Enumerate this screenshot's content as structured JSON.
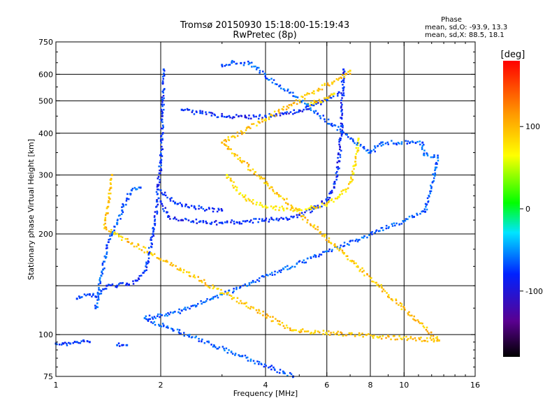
{
  "chart_data": {
    "type": "scatter",
    "title": "Tromsø 20150930 15:18:00-15:19:43",
    "subtitle": "RwPretec (8p)",
    "xlabel": "Frequency [MHz]",
    "ylabel": "Stationary phase Virtual Height [km]",
    "x_scale": "log",
    "y_scale": "log",
    "xlim": [
      1,
      16
    ],
    "ylim": [
      75,
      750
    ],
    "x_ticks": [
      1,
      2,
      4,
      6,
      8,
      10,
      16
    ],
    "x_tick_labels": [
      "1",
      "2",
      "4",
      "6",
      "8",
      "10",
      "16"
    ],
    "y_ticks": [
      75,
      100,
      200,
      300,
      400,
      500,
      600,
      750
    ],
    "y_tick_labels": [
      "75",
      "100",
      "200",
      "300",
      "400",
      "500",
      "600",
      "750"
    ],
    "y_grid": [
      100,
      140,
      200,
      300,
      400,
      500,
      600
    ],
    "x_grid": [
      2,
      4,
      6,
      8,
      10
    ],
    "grid": true,
    "phase_info": {
      "title": "Phase",
      "line_o": "mean, sd,O: -93.9, 13.3",
      "line_x": "mean, sd,X:  88.5, 18.1"
    },
    "colorbar": {
      "label": "[deg]",
      "ticks": [
        100,
        0,
        -100
      ],
      "tick_labels": [
        "100",
        "0",
        "-100"
      ],
      "range": [
        -180,
        180
      ],
      "colormap": "rainbow (black-purple-blue-cyan-green-yellow-orange-red)"
    },
    "traces": [
      {
        "id": "bottom-layer",
        "phase": -95,
        "points": [
          [
            1.0,
            94
          ],
          [
            1.05,
            94
          ],
          [
            1.1,
            94
          ],
          [
            1.15,
            95
          ],
          [
            1.2,
            96
          ],
          [
            1.25,
            95
          ]
        ]
      },
      {
        "id": "small-cluster",
        "phase": -90,
        "points": [
          [
            1.5,
            93
          ],
          [
            1.55,
            93
          ],
          [
            1.6,
            93
          ]
        ]
      },
      {
        "id": "o-lower-E",
        "phase": -95,
        "points": [
          [
            1.15,
            128
          ],
          [
            1.25,
            132
          ],
          [
            1.3,
            130
          ],
          [
            1.35,
            135
          ],
          [
            1.4,
            140
          ],
          [
            1.5,
            140
          ],
          [
            1.6,
            142
          ],
          [
            1.7,
            145
          ],
          [
            1.8,
            155
          ],
          [
            1.85,
            175
          ],
          [
            1.9,
            200
          ],
          [
            1.95,
            250
          ],
          [
            2.0,
            330
          ],
          [
            2.02,
            450
          ],
          [
            2.04,
            620
          ]
        ]
      },
      {
        "id": "x-lower-E",
        "phase": -80,
        "points": [
          [
            1.3,
            120
          ],
          [
            1.35,
            150
          ],
          [
            1.4,
            185
          ],
          [
            1.45,
            200
          ],
          [
            1.5,
            215
          ],
          [
            1.55,
            235
          ],
          [
            1.6,
            255
          ],
          [
            1.65,
            270
          ],
          [
            1.7,
            272
          ],
          [
            1.75,
            275
          ]
        ]
      },
      {
        "id": "F-region-o",
        "phase": -100,
        "points": [
          [
            2.0,
            250
          ],
          [
            2.1,
            225
          ],
          [
            2.3,
            220
          ],
          [
            2.6,
            218
          ],
          [
            3.0,
            216
          ],
          [
            3.5,
            218
          ],
          [
            4.0,
            220
          ],
          [
            4.5,
            222
          ],
          [
            5.0,
            228
          ],
          [
            5.5,
            238
          ],
          [
            6.0,
            252
          ],
          [
            6.3,
            275
          ],
          [
            6.5,
            330
          ],
          [
            6.6,
            420
          ],
          [
            6.65,
            520
          ],
          [
            6.7,
            620
          ]
        ]
      },
      {
        "id": "F-region-lower",
        "phase": -95,
        "points": [
          [
            2.0,
            270
          ],
          [
            2.2,
            248
          ],
          [
            2.5,
            240
          ],
          [
            3.0,
            235
          ]
        ]
      },
      {
        "id": "x-F-trace",
        "phase": 95,
        "points": [
          [
            3.1,
            300
          ],
          [
            3.3,
            270
          ],
          [
            3.6,
            252
          ],
          [
            4.0,
            242
          ],
          [
            4.5,
            238
          ],
          [
            5.0,
            237
          ],
          [
            5.5,
            240
          ],
          [
            6.0,
            246
          ],
          [
            6.5,
            258
          ],
          [
            7.0,
            285
          ],
          [
            7.2,
            320
          ],
          [
            7.4,
            385
          ]
        ]
      },
      {
        "id": "upper-reflection",
        "phase": -100,
        "points": [
          [
            2.3,
            470
          ],
          [
            2.6,
            460
          ],
          [
            3.0,
            450
          ],
          [
            3.5,
            447
          ],
          [
            4.0,
            450
          ],
          [
            4.5,
            457
          ],
          [
            5.0,
            468
          ],
          [
            5.5,
            485
          ],
          [
            6.0,
            505
          ],
          [
            6.5,
            530
          ]
        ]
      },
      {
        "id": "upper-x",
        "phase": 100,
        "points": [
          [
            5.3,
            490
          ],
          [
            5.6,
            495
          ],
          [
            6.0,
            510
          ],
          [
            6.3,
            525
          ]
        ]
      },
      {
        "id": "scattered",
        "phase": -80,
        "points": [
          [
            3.0,
            640
          ],
          [
            3.2,
            650
          ],
          [
            3.4,
            648
          ],
          [
            3.6,
            648
          ],
          [
            8.0,
            350
          ],
          [
            8.6,
            375
          ],
          [
            11.3,
            375
          ],
          [
            11.4,
            345
          ],
          [
            12.5,
            338
          ],
          [
            11.5,
            233
          ],
          [
            2.3,
            118
          ],
          [
            1.8,
            112
          ],
          [
            4.8,
            75
          ]
        ]
      },
      {
        "id": "scattered-warm",
        "phase": 110,
        "points": [
          [
            1.45,
            300
          ],
          [
            1.38,
            208
          ],
          [
            4.8,
            103
          ],
          [
            12.6,
            96
          ],
          [
            3.0,
            375
          ],
          [
            6.8,
            600
          ],
          [
            7.0,
            615
          ]
        ]
      }
    ]
  }
}
